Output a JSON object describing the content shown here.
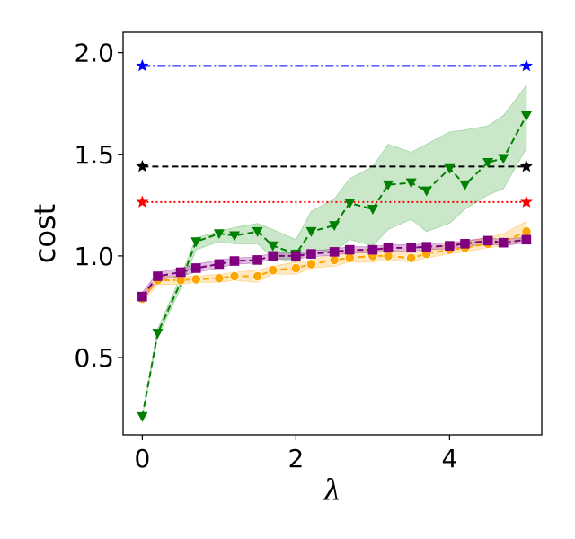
{
  "chart_data": {
    "type": "line",
    "xlabel": "λ",
    "ylabel": "cost",
    "xlim": [
      -0.25,
      5.2
    ],
    "ylim": [
      0.12,
      2.1
    ],
    "xticks": [
      0,
      2,
      4
    ],
    "xtick_labels": [
      "0",
      "2",
      "4"
    ],
    "yticks": [
      0.5,
      1.0,
      1.5,
      2.0
    ],
    "ytick_labels": [
      "0.5",
      "1.0",
      "1.5",
      "2.0"
    ],
    "grid": false,
    "series": [
      {
        "color": "#0000ff",
        "line_style": "dashdot",
        "marker": "star",
        "x": [
          0,
          5
        ],
        "y": [
          1.935,
          1.935
        ]
      },
      {
        "color": "#000000",
        "line_style": "dashed",
        "marker": "star",
        "x": [
          0,
          5
        ],
        "y": [
          1.44,
          1.44
        ]
      },
      {
        "color": "#ff0000",
        "line_style": "dotted",
        "marker": "star",
        "x": [
          0,
          5
        ],
        "y": [
          1.265,
          1.265
        ]
      },
      {
        "color": "#008000",
        "line_style": "dashed",
        "marker": "triangle-down",
        "band_color": "#2ca02c",
        "x": [
          0,
          0.2,
          0.5,
          0.7,
          1.0,
          1.2,
          1.5,
          1.7,
          2.0,
          2.2,
          2.5,
          2.7,
          3.0,
          3.2,
          3.5,
          3.7,
          4.0,
          4.2,
          4.5,
          4.7,
          5.0
        ],
        "y": [
          0.21,
          0.62,
          0.87,
          1.07,
          1.11,
          1.1,
          1.12,
          1.05,
          1.01,
          1.12,
          1.15,
          1.26,
          1.23,
          1.35,
          1.36,
          1.32,
          1.43,
          1.35,
          1.46,
          1.48,
          1.69
        ],
        "band_lower": [
          0.21,
          0.6,
          0.84,
          1.03,
          1.07,
          1.06,
          1.06,
          0.99,
          0.97,
          1.03,
          1.02,
          1.08,
          1.05,
          1.13,
          1.18,
          1.12,
          1.16,
          1.23,
          1.3,
          1.33,
          1.53
        ],
        "band_upper": [
          0.21,
          0.64,
          0.9,
          1.09,
          1.12,
          1.14,
          1.16,
          1.13,
          1.08,
          1.22,
          1.28,
          1.38,
          1.44,
          1.55,
          1.51,
          1.55,
          1.61,
          1.62,
          1.64,
          1.69,
          1.84
        ]
      },
      {
        "color": "#ffa500",
        "line_style": "dashed",
        "marker": "circle",
        "band_color": "#ffa500",
        "x": [
          0,
          0.2,
          0.5,
          0.7,
          1.0,
          1.2,
          1.5,
          1.7,
          2.0,
          2.2,
          2.5,
          2.7,
          3.0,
          3.2,
          3.5,
          3.7,
          4.0,
          4.2,
          4.5,
          4.7,
          5.0
        ],
        "y": [
          0.79,
          0.88,
          0.88,
          0.885,
          0.89,
          0.9,
          0.9,
          0.93,
          0.94,
          0.96,
          0.98,
          0.99,
          1.0,
          1.0,
          0.99,
          1.01,
          1.03,
          1.04,
          1.06,
          1.07,
          1.12
        ],
        "band_lower": [
          0.77,
          0.86,
          0.86,
          0.87,
          0.87,
          0.88,
          0.87,
          0.91,
          0.91,
          0.94,
          0.95,
          0.97,
          0.97,
          0.98,
          0.97,
          0.99,
          1.01,
          1.02,
          1.04,
          1.05,
          1.08
        ],
        "band_upper": [
          0.81,
          0.9,
          0.9,
          0.9,
          0.91,
          0.92,
          0.93,
          0.95,
          0.97,
          0.98,
          1.01,
          1.02,
          1.04,
          1.03,
          1.02,
          1.03,
          1.06,
          1.07,
          1.09,
          1.11,
          1.17
        ]
      },
      {
        "color": "#800080",
        "line_style": "dashed",
        "marker": "square",
        "band_color": "#800080",
        "x": [
          0,
          0.2,
          0.5,
          0.7,
          1.0,
          1.2,
          1.5,
          1.7,
          2.0,
          2.2,
          2.5,
          2.7,
          3.0,
          3.2,
          3.5,
          3.7,
          4.0,
          4.2,
          4.5,
          4.7,
          5.0
        ],
        "y": [
          0.8,
          0.9,
          0.92,
          0.94,
          0.96,
          0.975,
          0.98,
          1.0,
          1.0,
          1.01,
          1.02,
          1.03,
          1.03,
          1.04,
          1.04,
          1.045,
          1.05,
          1.06,
          1.075,
          1.065,
          1.08
        ],
        "band_lower": [
          0.78,
          0.88,
          0.9,
          0.92,
          0.94,
          0.96,
          0.965,
          0.985,
          0.985,
          0.995,
          1.005,
          1.015,
          1.015,
          1.025,
          1.025,
          1.03,
          1.035,
          1.045,
          1.06,
          1.05,
          1.065
        ],
        "band_upper": [
          0.82,
          0.92,
          0.94,
          0.96,
          0.98,
          0.99,
          0.995,
          1.015,
          1.015,
          1.025,
          1.035,
          1.045,
          1.045,
          1.055,
          1.055,
          1.06,
          1.065,
          1.075,
          1.09,
          1.08,
          1.095
        ]
      }
    ]
  }
}
